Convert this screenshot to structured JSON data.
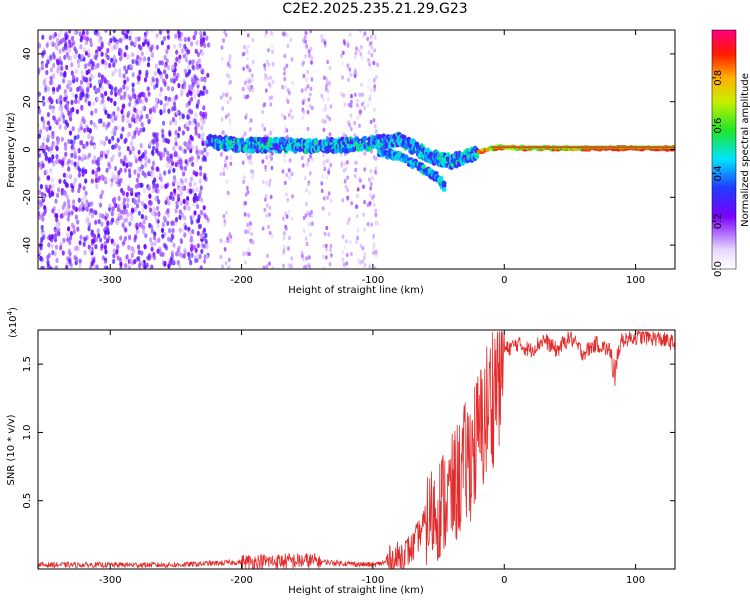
{
  "title": "C2E2.2025.235.21.29.G23",
  "chart_data": [
    {
      "type": "heatmap",
      "xlabel": "Height of straight line (km)",
      "ylabel": "Frequency (Hz)",
      "xlim": [
        -355,
        130
      ],
      "ylim": [
        -50,
        50
      ],
      "xticks": [
        -300,
        -200,
        -100,
        0,
        100
      ],
      "yticks": [
        -40,
        -20,
        0,
        20,
        40
      ],
      "colorbar": {
        "label": "Normalized spectral amplitude",
        "range": [
          0,
          1
        ],
        "ticks": [
          "0.0",
          "0.2",
          "0.4",
          "0.6",
          "0.8"
        ],
        "tick_values": [
          0,
          0.2,
          0.4,
          0.6,
          0.8
        ]
      },
      "features": {
        "noise_region": [
          -355,
          -225
        ],
        "main_track": [
          [
            -225,
            3
          ],
          [
            -200,
            2
          ],
          [
            -150,
            1.5
          ],
          [
            -110,
            2
          ],
          [
            -80,
            4
          ],
          [
            -55,
            -3
          ],
          [
            -40,
            -5
          ],
          [
            -25,
            -2
          ],
          [
            -10,
            0.5
          ],
          [
            0,
            1
          ],
          [
            20,
            0.5
          ],
          [
            60,
            0.5
          ],
          [
            130,
            0.5
          ]
        ],
        "secondary_track": [
          [
            -95,
            -1
          ],
          [
            -80,
            -3
          ],
          [
            -65,
            -7
          ],
          [
            -50,
            -12
          ],
          [
            -45,
            -16
          ]
        ]
      }
    },
    {
      "type": "line",
      "xlabel": "Height of straight line (km)",
      "ylabel": "SNR (10 * v/v)",
      "scale_label": "(x10",
      "scale_exp": "4",
      "scale_close": ")",
      "xlim": [
        -355,
        130
      ],
      "ylim": [
        0,
        1.75
      ],
      "xticks": [
        -300,
        -200,
        -100,
        0,
        100
      ],
      "yticks": [
        0.5,
        1.0,
        1.5
      ],
      "ytick_labels": [
        "0.5",
        "1.0",
        "1.5"
      ],
      "color": "#e32b2b",
      "series": [
        {
          "name": "SNR",
          "x": [
            -355,
            -250,
            -200,
            -150,
            -120,
            -100,
            -85,
            -70,
            -60,
            -50,
            -40,
            -30,
            -20,
            -10,
            0,
            10,
            20,
            30,
            40,
            50,
            60,
            70,
            80,
            85,
            90,
            100,
            110,
            120,
            130
          ],
          "y": [
            0.03,
            0.03,
            0.05,
            0.06,
            0.04,
            0.03,
            0.06,
            0.15,
            0.35,
            0.45,
            0.55,
            0.75,
            0.95,
            1.25,
            1.6,
            1.65,
            1.6,
            1.68,
            1.6,
            1.7,
            1.58,
            1.65,
            1.6,
            1.55,
            1.68,
            1.7,
            1.7,
            1.68,
            1.65
          ]
        }
      ]
    }
  ]
}
